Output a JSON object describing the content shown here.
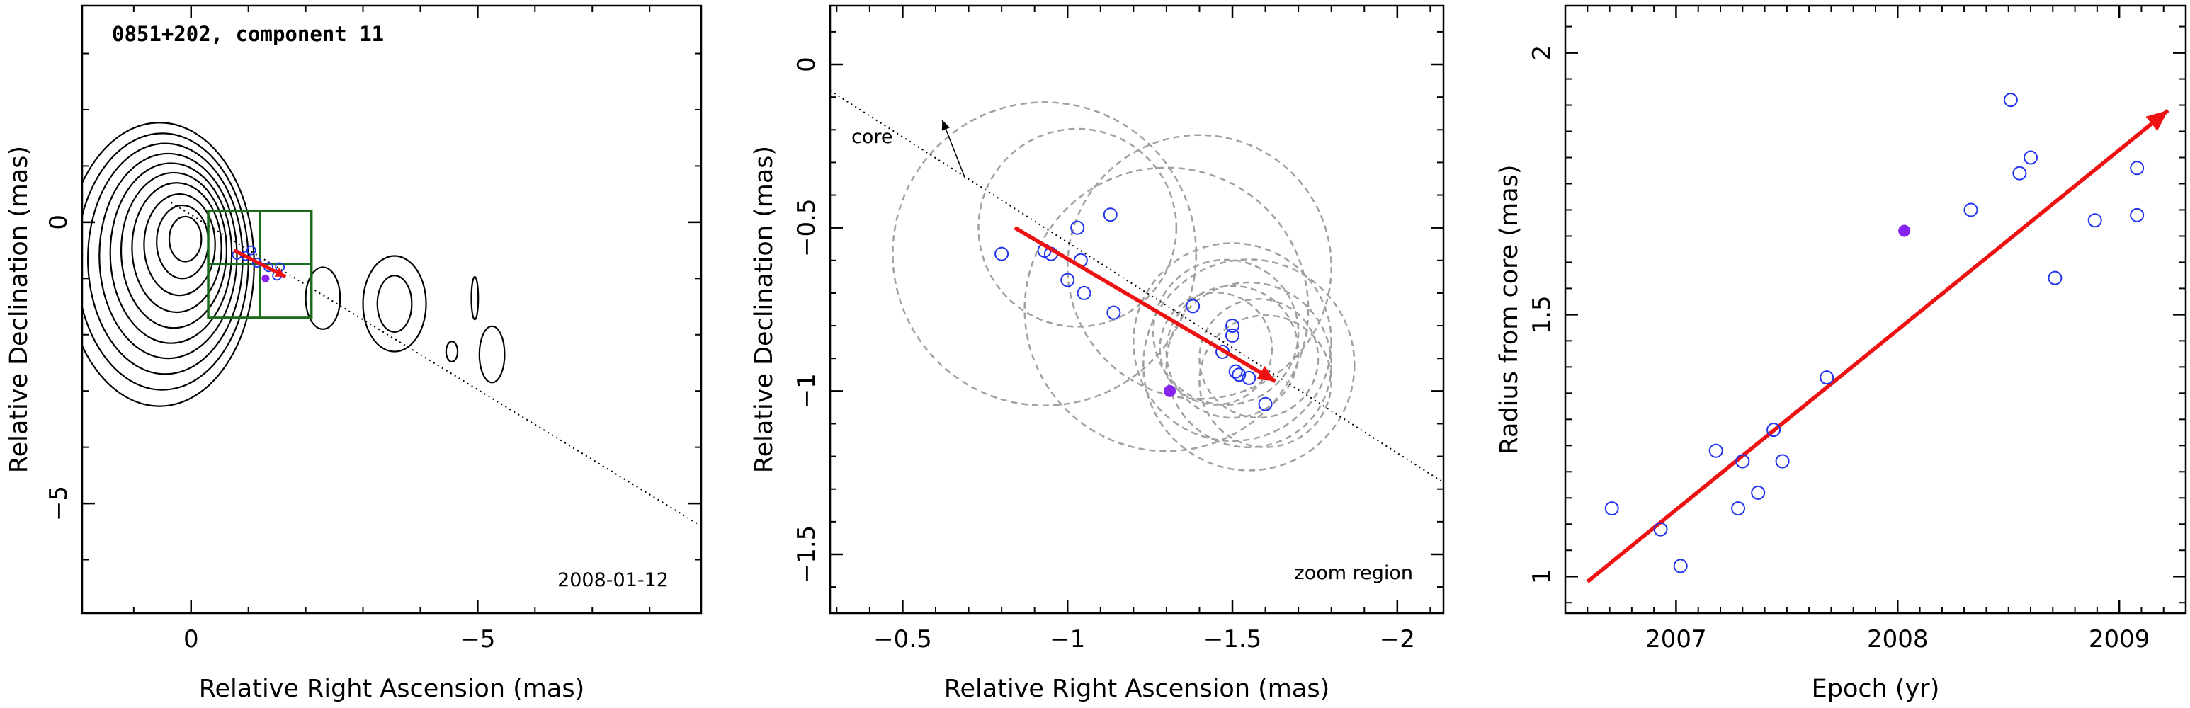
{
  "chart_data": [
    {
      "type": "contour",
      "title": "0851+202, component 11",
      "xlabel": "Relative Right Ascension (mas)",
      "ylabel": "Relative Declination (mas)",
      "xlim": [
        1.9,
        -8.9
      ],
      "ylim": [
        -6.95,
        3.85
      ],
      "x_ticks": [
        {
          "value": 0,
          "label": "0"
        },
        {
          "value": -5,
          "label": "−5"
        }
      ],
      "y_ticks": [
        {
          "value": 0,
          "label": "0"
        },
        {
          "value": -5,
          "label": "−5"
        }
      ],
      "annotation_date": "2008-01-12",
      "core_axis_line": {
        "from": [
          0.35,
          0.35
        ],
        "to": [
          -8.9,
          -5.4
        ]
      },
      "zoom_box": {
        "x": [
          -0.3,
          -2.1
        ],
        "y": [
          0.2,
          -1.7
        ]
      },
      "velocity_arrow": {
        "from": [
          -0.75,
          -0.5
        ],
        "to": [
          -1.65,
          -0.97
        ]
      },
      "points_open": [
        [
          -0.8,
          -0.58
        ],
        [
          -0.95,
          -0.6
        ],
        [
          -1.05,
          -0.5
        ],
        [
          -1.15,
          -0.72
        ],
        [
          -1.35,
          -0.8
        ],
        [
          -1.5,
          -0.95
        ],
        [
          -1.55,
          -0.8
        ]
      ],
      "point_filled": [
        -1.3,
        -1.0
      ],
      "contours": [
        {
          "cx": 0.1,
          "cy": -0.3,
          "rx": 0.28,
          "ry": 0.4
        },
        {
          "cx": 0.15,
          "cy": -0.35,
          "rx": 0.45,
          "ry": 0.65
        },
        {
          "cx": 0.2,
          "cy": -0.4,
          "rx": 0.62,
          "ry": 0.9
        },
        {
          "cx": 0.25,
          "cy": -0.45,
          "rx": 0.78,
          "ry": 1.15
        },
        {
          "cx": 0.3,
          "cy": -0.5,
          "rx": 0.92,
          "ry": 1.38
        },
        {
          "cx": 0.35,
          "cy": -0.55,
          "rx": 1.06,
          "ry": 1.6
        },
        {
          "cx": 0.4,
          "cy": -0.6,
          "rx": 1.2,
          "ry": 1.82
        },
        {
          "cx": 0.45,
          "cy": -0.65,
          "rx": 1.35,
          "ry": 2.05
        },
        {
          "cx": 0.5,
          "cy": -0.7,
          "rx": 1.5,
          "ry": 2.28
        },
        {
          "cx": 0.55,
          "cy": -0.75,
          "rx": 1.65,
          "ry": 2.52
        },
        {
          "cx": -3.55,
          "cy": -1.45,
          "rx": 0.3,
          "ry": 0.5
        },
        {
          "cx": -3.55,
          "cy": -1.45,
          "rx": 0.55,
          "ry": 0.85
        },
        {
          "cx": -2.3,
          "cy": -1.35,
          "rx": 0.3,
          "ry": 0.55
        },
        {
          "cx": -4.95,
          "cy": -1.35,
          "rx": 0.06,
          "ry": 0.38
        },
        {
          "cx": -5.25,
          "cy": -2.35,
          "rx": 0.22,
          "ry": 0.5
        },
        {
          "cx": -4.55,
          "cy": -2.3,
          "rx": 0.1,
          "ry": 0.18
        }
      ]
    },
    {
      "type": "scatter",
      "xlabel": "Relative Right Ascension (mas)",
      "ylabel": "Relative Declination (mas)",
      "xlim": [
        -0.28,
        -2.14
      ],
      "ylim": [
        -1.68,
        0.18
      ],
      "x_ticks": [
        {
          "value": -0.5,
          "label": "−0.5"
        },
        {
          "value": -1,
          "label": "−1"
        },
        {
          "value": -1.5,
          "label": "−1.5"
        },
        {
          "value": -2,
          "label": "−2"
        }
      ],
      "y_ticks": [
        {
          "value": 0,
          "label": "0"
        },
        {
          "value": -0.5,
          "label": "−0.5"
        },
        {
          "value": -1,
          "label": "−1"
        },
        {
          "value": -1.5,
          "label": "−1.5"
        }
      ],
      "annotations": {
        "core": "core",
        "zoom": "zoom region"
      },
      "core_line": {
        "from": [
          -0.28,
          -0.08
        ],
        "to": [
          -2.14,
          -1.28
        ]
      },
      "core_arrow": {
        "from": [
          -0.69,
          -0.35
        ],
        "to": [
          -0.62,
          -0.17
        ]
      },
      "velocity_arrow": {
        "from": [
          -0.84,
          -0.5
        ],
        "to": [
          -1.63,
          -0.97
        ]
      },
      "points_open": [
        [
          -0.8,
          -0.58
        ],
        [
          -0.93,
          -0.57
        ],
        [
          -0.95,
          -0.58
        ],
        [
          -1.0,
          -0.66
        ],
        [
          -1.03,
          -0.5
        ],
        [
          -1.04,
          -0.6
        ],
        [
          -1.05,
          -0.7
        ],
        [
          -1.13,
          -0.46
        ],
        [
          -1.14,
          -0.76
        ],
        [
          -1.38,
          -0.74
        ],
        [
          -1.47,
          -0.88
        ],
        [
          -1.5,
          -0.83
        ],
        [
          -1.5,
          -0.8
        ],
        [
          -1.51,
          -0.94
        ],
        [
          -1.52,
          -0.95
        ],
        [
          -1.55,
          -0.96
        ],
        [
          -1.6,
          -1.04
        ]
      ],
      "point_filled": [
        -1.31,
        -1.0
      ],
      "circles": [
        {
          "cx": -0.93,
          "cy": -0.58,
          "r": 0.46
        },
        {
          "cx": -1.03,
          "cy": -0.5,
          "r": 0.3
        },
        {
          "cx": -1.3,
          "cy": -0.75,
          "r": 0.43
        },
        {
          "cx": -1.4,
          "cy": -0.62,
          "r": 0.4
        },
        {
          "cx": -1.55,
          "cy": -0.92,
          "r": 0.32
        },
        {
          "cx": -1.55,
          "cy": -0.92,
          "r": 0.25
        },
        {
          "cx": -1.5,
          "cy": -0.88,
          "r": 0.2
        },
        {
          "cx": -1.45,
          "cy": -0.87,
          "r": 0.17
        },
        {
          "cx": -1.5,
          "cy": -0.85,
          "r": 0.3
        },
        {
          "cx": -1.48,
          "cy": -0.82,
          "r": 0.22
        },
        {
          "cx": -1.6,
          "cy": -0.97,
          "r": 0.2
        },
        {
          "cx": -1.58,
          "cy": -0.9,
          "r": 0.18
        }
      ]
    },
    {
      "type": "scatter",
      "xlabel": "Epoch (yr)",
      "ylabel": "Radius from core (mas)",
      "xlim": [
        2006.5,
        2009.3
      ],
      "ylim": [
        0.93,
        2.09
      ],
      "x_ticks": [
        {
          "value": 2007,
          "label": "2007"
        },
        {
          "value": 2008,
          "label": "2008"
        },
        {
          "value": 2009,
          "label": "2009"
        }
      ],
      "y_ticks": [
        {
          "value": 1,
          "label": "1"
        },
        {
          "value": 1.5,
          "label": "1.5"
        },
        {
          "value": 2,
          "label": "2"
        }
      ],
      "trend_arrow": {
        "from": [
          2006.6,
          0.99
        ],
        "to": [
          2009.22,
          1.89
        ]
      },
      "points_open": [
        [
          2006.71,
          1.13
        ],
        [
          2006.93,
          1.09
        ],
        [
          2007.02,
          1.02
        ],
        [
          2007.18,
          1.24
        ],
        [
          2007.28,
          1.13
        ],
        [
          2007.3,
          1.22
        ],
        [
          2007.37,
          1.16
        ],
        [
          2007.44,
          1.28
        ],
        [
          2007.48,
          1.22
        ],
        [
          2007.68,
          1.38
        ],
        [
          2008.33,
          1.7
        ],
        [
          2008.51,
          1.91
        ],
        [
          2008.55,
          1.77
        ],
        [
          2008.6,
          1.8
        ],
        [
          2008.71,
          1.57
        ],
        [
          2008.89,
          1.68
        ],
        [
          2009.08,
          1.78
        ],
        [
          2009.08,
          1.69
        ]
      ],
      "point_filled": [
        2008.03,
        1.66
      ]
    }
  ],
  "colors": {
    "axes": "#000000",
    "arrow": "#ee1111",
    "open_marker": "#2233ee",
    "filled_marker": "#8822ee",
    "box": "#1a6b1a",
    "circles": "#a0a0a0",
    "contours": "#000000"
  }
}
